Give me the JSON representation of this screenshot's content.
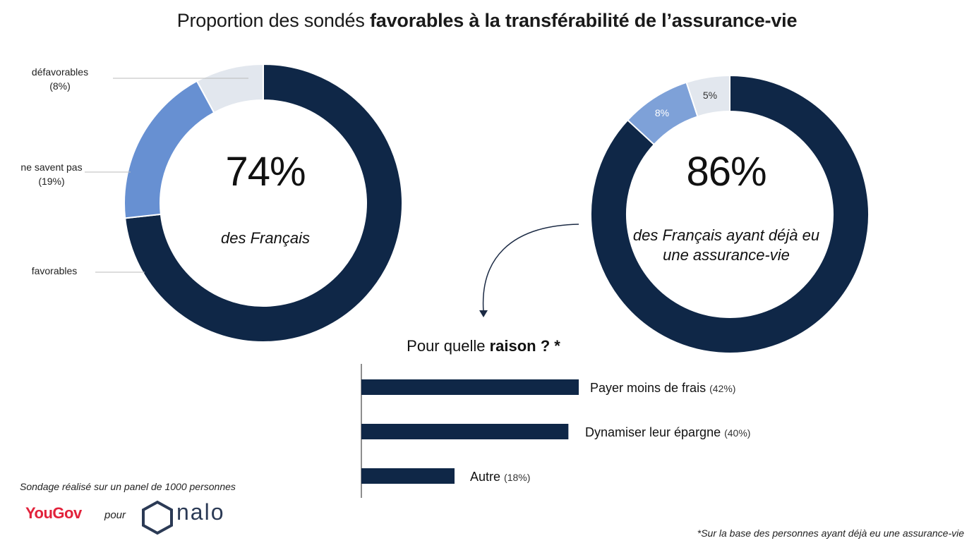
{
  "title": {
    "prefix": "Proportion des sondés ",
    "bold": "favorables à la transférabilité de l’assurance-vie"
  },
  "chart_data": [
    {
      "type": "pie",
      "variant": "donut",
      "categories": [
        "favorables",
        "ne savent pas",
        "défavorables"
      ],
      "values": [
        74,
        19,
        8
      ],
      "labels": [
        "favorables",
        "ne savent pas (19%)",
        "défavorables (8%)"
      ],
      "colors": [
        "#0f2747",
        "#6790d2",
        "#e2e7ee"
      ],
      "center_value": "74%",
      "center_label": "des Français"
    },
    {
      "type": "pie",
      "variant": "donut",
      "categories": [
        "favorables",
        "ne savent pas",
        "défavorables"
      ],
      "values": [
        86,
        8,
        5
      ],
      "slice_labels": [
        "",
        "8%",
        "5%"
      ],
      "colors": [
        "#0f2747",
        "#7ea1d8",
        "#e2e7ee"
      ],
      "center_value": "86%",
      "center_label_line1": "des Français ayant déjà eu",
      "center_label_line2": "une assurance-vie"
    },
    {
      "type": "bar",
      "orientation": "horizontal",
      "title_prefix": "Pour quelle ",
      "title_bold": "raison ? *",
      "categories": [
        "Payer moins de frais",
        "Dynamiser leur épargne",
        "Autre"
      ],
      "values": [
        42,
        40,
        18
      ],
      "value_labels": [
        "(42%)",
        "(40%)",
        "(18%)"
      ],
      "color": "#0f2747"
    }
  ],
  "donut1_labels": {
    "defavorables": "défavorables",
    "defavorables_pct": "(8%)",
    "nsp": "ne savent pas",
    "nsp_pct": "(19%)",
    "favorables": "favorables"
  },
  "footer": {
    "panel_note": "Sondage réalisé sur un panel de 1000 personnes",
    "brand1": "YouGov",
    "pour": "pour",
    "brand2": "nalo",
    "footnote": "*Sur la base des personnes ayant déjà eu une assurance-vie"
  }
}
